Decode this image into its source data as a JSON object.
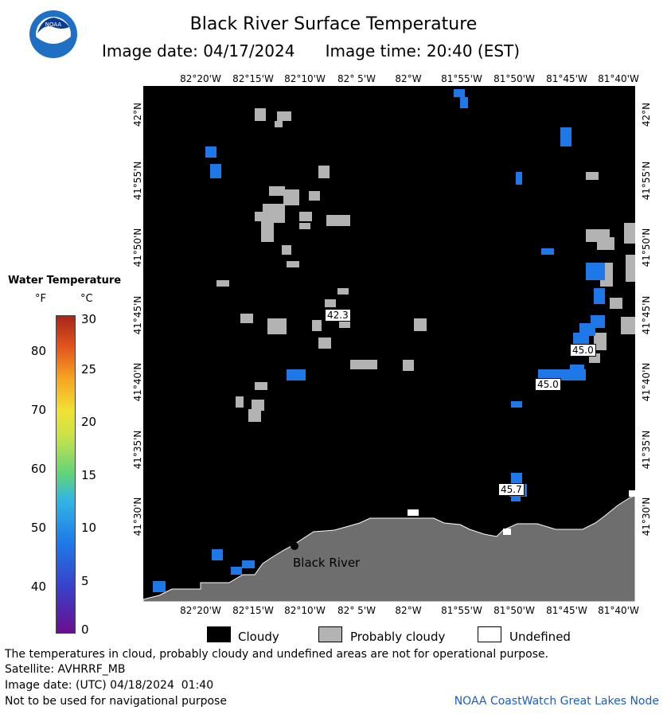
{
  "header": {
    "title": "Black River Surface Temperature",
    "image_date_label": "Image date: 04/17/2024",
    "image_time_label": "Image time: 20:40 (EST)",
    "logo_text": "NOAA"
  },
  "map": {
    "lon_ticks": [
      "82°20'W",
      "82°15'W",
      "82°10'W",
      "82° 5'W",
      "82°W",
      "81°55'W",
      "81°50'W",
      "81°45'W",
      "81°40'W"
    ],
    "lat_ticks": [
      "42°N",
      "41°55'N",
      "41°50'N",
      "41°45'N",
      "41°40'N",
      "41°35'N",
      "41°30'N"
    ],
    "place_label": "Black River",
    "temperature_labels": [
      "42.3",
      "45.0",
      "45.0",
      "45.7"
    ]
  },
  "legend": {
    "title": "Water Temperature",
    "unit_f": "°F",
    "unit_c": "°C",
    "f_ticks": [
      "80",
      "70",
      "60",
      "50",
      "40"
    ],
    "c_ticks": [
      "30",
      "25",
      "20",
      "15",
      "10",
      "5",
      "0"
    ]
  },
  "key": {
    "cloudy": "Cloudy",
    "probably_cloudy": "Probably cloudy",
    "undefined": "Undefined"
  },
  "footer": {
    "line1": "The temperatures in cloud, probably cloudy and undefined areas are not for operational purpose.",
    "line2": "Satellite: AVHRRF_MB",
    "line3": "Image date: (UTC) 04/18/2024  01:40",
    "line4": "Not to be used for navigational purpose",
    "credit": "NOAA CoastWatch Great Lakes Node"
  },
  "colors": {
    "cloudy": "#000000",
    "probably_cloudy": "#b3b3b3",
    "land": "#6e6e6e",
    "water_cold": "#1e78e8"
  }
}
